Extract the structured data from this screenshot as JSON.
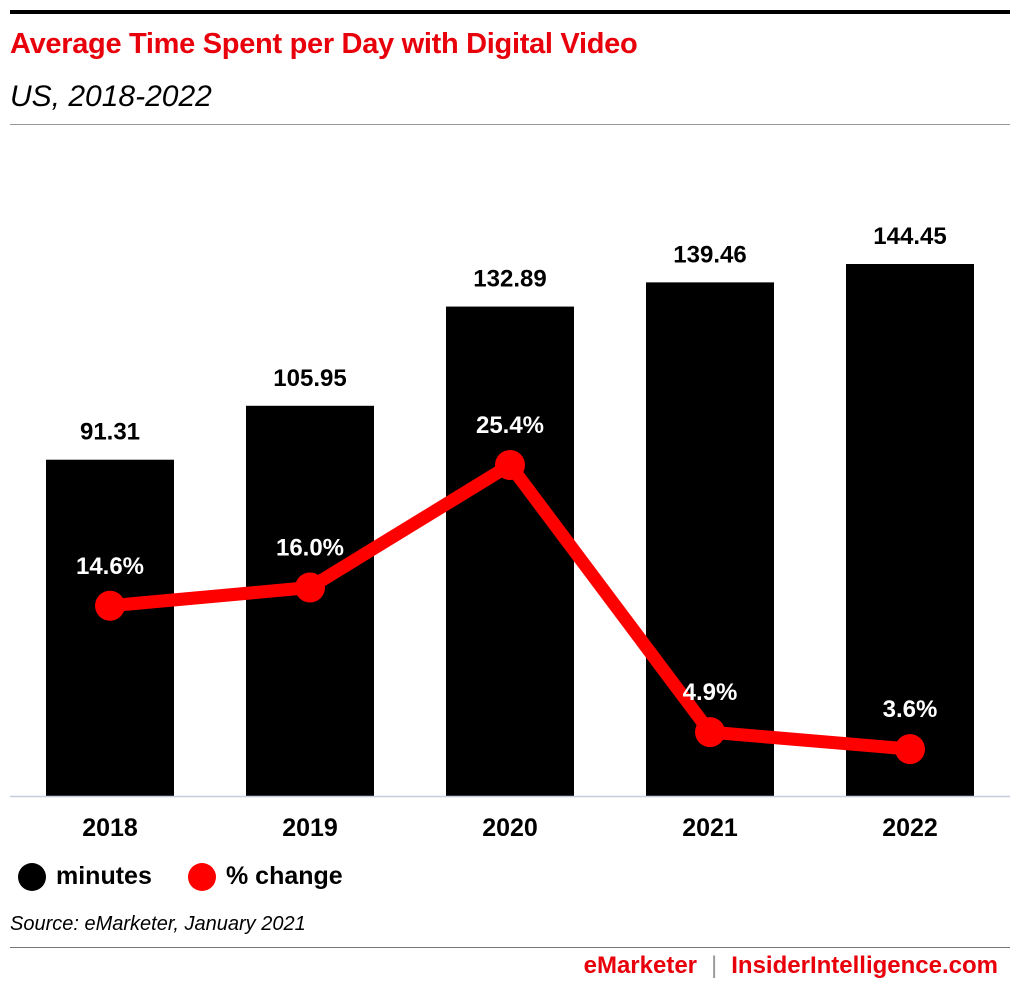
{
  "chart_data": {
    "type": "bar",
    "title": "Average Time Spent per Day with Digital Video",
    "subtitle": "US, 2018-2022",
    "categories": [
      "2018",
      "2019",
      "2020",
      "2021",
      "2022"
    ],
    "series": [
      {
        "name": "minutes",
        "type": "bar",
        "values": [
          91.31,
          105.95,
          132.89,
          139.46,
          144.45
        ],
        "labels": [
          "91.31",
          "105.95",
          "132.89",
          "139.46",
          "144.45"
        ],
        "color": "#000000"
      },
      {
        "name": "% change",
        "type": "line",
        "values": [
          14.6,
          16.0,
          25.4,
          4.9,
          3.6
        ],
        "labels": [
          "14.6%",
          "16.0%",
          "25.4%",
          "4.9%",
          "3.6%"
        ],
        "color": "#ff0000"
      }
    ],
    "xlabel": "",
    "ylabel": "",
    "grid": false,
    "legend": "bottom-left"
  },
  "legend": {
    "minutes": "minutes",
    "change": "% change"
  },
  "source": "Source: eMarketer, January 2021",
  "footer": {
    "brand1": "eMarketer",
    "sep": "|",
    "brand2": "InsiderIntelligence.com"
  }
}
